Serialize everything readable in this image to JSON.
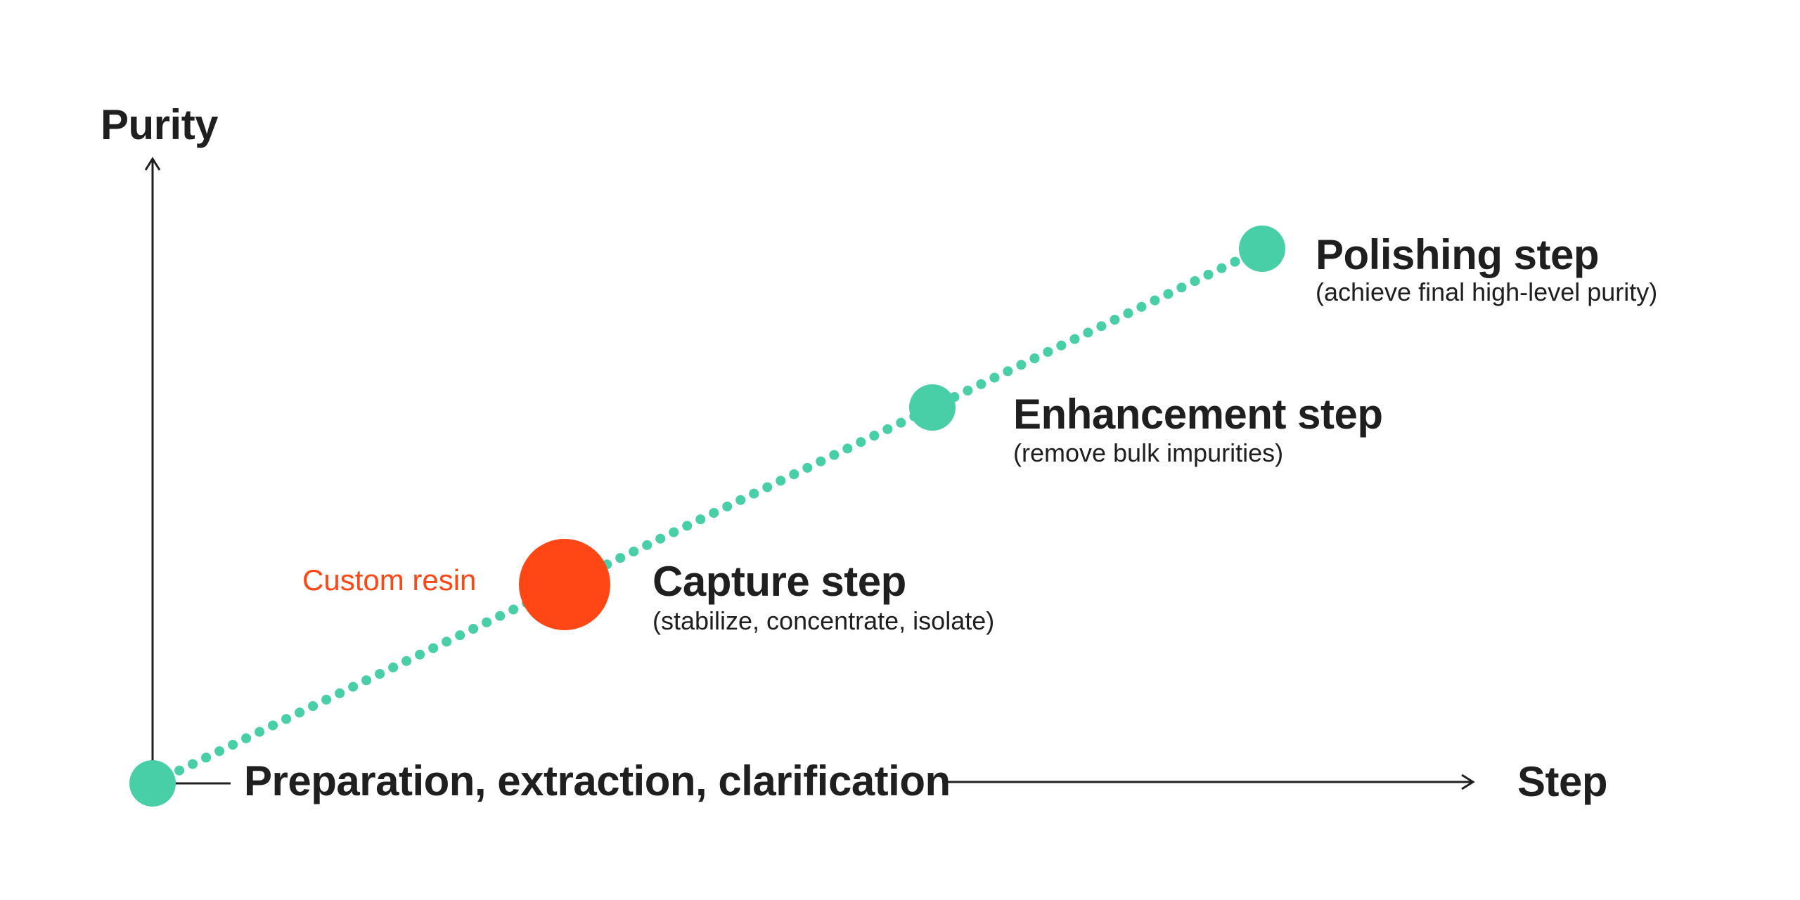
{
  "axes": {
    "y_title": "Purity",
    "x_title": "Step"
  },
  "steps": [
    {
      "title": "Preparation, extraction, clarification",
      "subtitle": ""
    },
    {
      "title": "Capture step",
      "subtitle": "(stabilize, concentrate, isolate)"
    },
    {
      "title": "Enhancement step",
      "subtitle": "(remove bulk impurities)"
    },
    {
      "title": "Polishing step",
      "subtitle": "(achieve final high-level purity)"
    }
  ],
  "highlight": {
    "label": "Custom resin",
    "step": "Capture step"
  },
  "colors": {
    "accent": "#48CFA7",
    "highlight": "#FF4614",
    "axis": "#1f1f1f",
    "text": "#1f1f1f"
  }
}
